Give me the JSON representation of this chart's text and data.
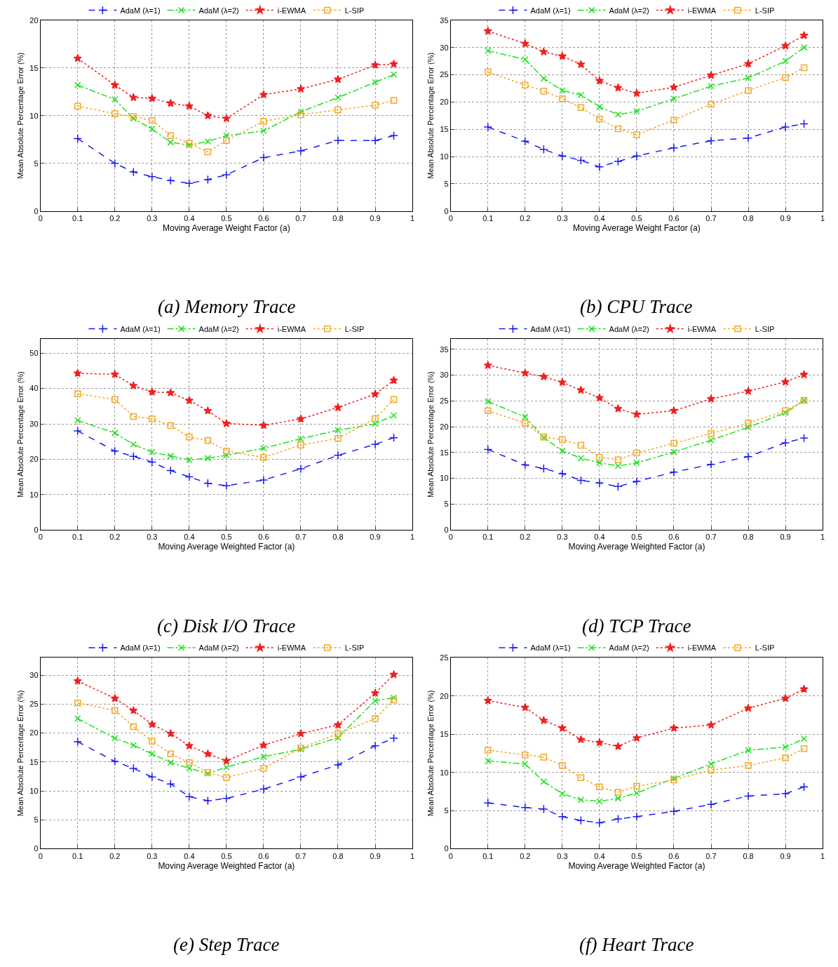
{
  "chart_data": [
    {
      "type": "line",
      "title": "(a) Memory Trace",
      "xlabel": "Moving Average Weight Factor (a)",
      "ylabel": "Mean Absolute Percentage Error (%)",
      "x": [
        0.1,
        0.2,
        0.25,
        0.3,
        0.35,
        0.4,
        0.45,
        0.5,
        0.6,
        0.7,
        0.8,
        0.9,
        0.95
      ],
      "xlim": [
        0,
        1
      ],
      "xticks": [
        0,
        0.1,
        0.2,
        0.3,
        0.4,
        0.5,
        0.6,
        0.7,
        0.8,
        0.9,
        1
      ],
      "ylim": [
        0,
        20
      ],
      "yticks": [
        0,
        5,
        10,
        15,
        20
      ],
      "grid": true,
      "legend": "top",
      "series": [
        {
          "name": "AdaM (λ=1)",
          "color": "#1c1cf0",
          "marker": "cross",
          "line_style": "dashed",
          "values": [
            7.6,
            5.0,
            4.1,
            3.6,
            3.2,
            2.9,
            3.3,
            3.8,
            5.6,
            6.3,
            7.4,
            7.4,
            7.9
          ]
        },
        {
          "name": "AdaM (λ=2)",
          "color": "#20e020",
          "marker": "x",
          "line_style": "dashdot",
          "values": [
            13.2,
            11.7,
            9.7,
            8.6,
            7.2,
            6.9,
            7.3,
            7.9,
            8.4,
            10.4,
            11.9,
            13.5,
            14.3
          ]
        },
        {
          "name": "i-EWMA",
          "color": "#f02020",
          "marker": "star",
          "line_style": "dotted",
          "values": [
            16.0,
            13.2,
            11.9,
            11.8,
            11.3,
            11.0,
            10.0,
            9.7,
            12.2,
            12.8,
            13.8,
            15.3,
            15.4
          ]
        },
        {
          "name": "L-SIP",
          "color": "#f5a623",
          "marker": "square",
          "line_style": "dotted",
          "values": [
            11.0,
            10.2,
            9.9,
            9.5,
            7.9,
            7.1,
            6.2,
            7.4,
            9.4,
            10.1,
            10.6,
            11.1,
            11.6
          ]
        }
      ]
    },
    {
      "type": "line",
      "title": "(b) CPU Trace",
      "xlabel": "Moving Average Weight Factor (a)",
      "ylabel": "Mean Absolute Percentage Error (%)",
      "x": [
        0.1,
        0.2,
        0.25,
        0.3,
        0.35,
        0.4,
        0.45,
        0.5,
        0.6,
        0.7,
        0.8,
        0.9,
        0.95
      ],
      "xlim": [
        0,
        1
      ],
      "xticks": [
        0,
        0.1,
        0.2,
        0.3,
        0.4,
        0.5,
        0.6,
        0.7,
        0.8,
        0.9,
        1
      ],
      "ylim": [
        0,
        35
      ],
      "yticks": [
        0,
        5,
        10,
        15,
        20,
        25,
        30,
        35
      ],
      "grid": true,
      "legend": "top",
      "series": [
        {
          "name": "AdaM (λ=1)",
          "color": "#1c1cf0",
          "marker": "cross",
          "line_style": "dashed",
          "values": [
            15.4,
            12.8,
            11.3,
            10.1,
            9.3,
            8.1,
            9.1,
            10.1,
            11.6,
            12.9,
            13.4,
            15.4,
            16.0
          ]
        },
        {
          "name": "AdaM (λ=2)",
          "color": "#20e020",
          "marker": "x",
          "line_style": "dashdot",
          "values": [
            29.4,
            27.8,
            24.3,
            22.1,
            21.3,
            19.1,
            17.7,
            18.3,
            20.6,
            22.9,
            24.4,
            27.5,
            30.0
          ]
        },
        {
          "name": "i-EWMA",
          "color": "#f02020",
          "marker": "star",
          "line_style": "dotted",
          "values": [
            33.0,
            30.7,
            29.2,
            28.4,
            26.9,
            23.9,
            22.6,
            21.6,
            22.7,
            24.9,
            27.0,
            30.3,
            32.2
          ]
        },
        {
          "name": "L-SIP",
          "color": "#f5a623",
          "marker": "square",
          "line_style": "dotted",
          "values": [
            25.5,
            23.1,
            22.0,
            20.6,
            19.0,
            16.9,
            15.1,
            14.0,
            16.7,
            19.6,
            22.1,
            24.5,
            26.3
          ]
        }
      ]
    },
    {
      "type": "line",
      "title": "(c) Disk I/O Trace",
      "xlabel": "Moving Average Weighted Factor (a)",
      "ylabel": "Mean Absolute Percentage Error (%)",
      "x": [
        0.1,
        0.2,
        0.25,
        0.3,
        0.35,
        0.4,
        0.45,
        0.5,
        0.6,
        0.7,
        0.8,
        0.9,
        0.95
      ],
      "xlim": [
        0,
        1
      ],
      "xticks": [
        0,
        0.1,
        0.2,
        0.3,
        0.4,
        0.5,
        0.6,
        0.7,
        0.8,
        0.9,
        1
      ],
      "ylim": [
        0,
        54
      ],
      "yticks": [
        0,
        10,
        20,
        30,
        40,
        50
      ],
      "grid": true,
      "legend": "top",
      "series": [
        {
          "name": "AdaM (λ=1)",
          "color": "#1c1cf0",
          "marker": "cross",
          "line_style": "dashed",
          "values": [
            28.0,
            22.3,
            20.8,
            19.2,
            16.8,
            15.0,
            13.2,
            12.5,
            14.1,
            17.3,
            21.1,
            24.2,
            26.1
          ]
        },
        {
          "name": "AdaM (λ=2)",
          "color": "#20e020",
          "marker": "x",
          "line_style": "dashdot",
          "values": [
            31.0,
            27.4,
            24.2,
            22.0,
            20.9,
            19.8,
            20.3,
            21.1,
            23.1,
            25.8,
            28.2,
            30.0,
            32.4
          ]
        },
        {
          "name": "i-EWMA",
          "color": "#f02020",
          "marker": "star",
          "line_style": "dotted",
          "values": [
            44.3,
            44.0,
            40.8,
            39.0,
            38.8,
            36.6,
            33.7,
            30.1,
            29.6,
            31.4,
            34.6,
            38.4,
            42.3
          ]
        },
        {
          "name": "L-SIP",
          "color": "#f5a623",
          "marker": "square",
          "line_style": "dotted",
          "values": [
            38.5,
            36.9,
            32.1,
            31.4,
            29.5,
            26.3,
            25.3,
            22.3,
            20.5,
            24.0,
            25.9,
            31.5,
            36.9
          ]
        }
      ]
    },
    {
      "type": "line",
      "title": "(d) TCP Trace",
      "xlabel": "Moving Average Weighted Factor (a)",
      "ylabel": "Mean Absolute Percentage Error (%)",
      "x": [
        0.1,
        0.2,
        0.25,
        0.3,
        0.35,
        0.4,
        0.45,
        0.5,
        0.6,
        0.7,
        0.8,
        0.9,
        0.95
      ],
      "xlim": [
        0,
        1
      ],
      "xticks": [
        0,
        0.1,
        0.2,
        0.3,
        0.4,
        0.5,
        0.6,
        0.7,
        0.8,
        0.9,
        1
      ],
      "ylim": [
        0,
        37
      ],
      "yticks": [
        0,
        5,
        10,
        15,
        20,
        25,
        30,
        35
      ],
      "grid": true,
      "legend": "top",
      "series": [
        {
          "name": "AdaM (λ=1)",
          "color": "#1c1cf0",
          "marker": "cross",
          "line_style": "dashed",
          "values": [
            15.6,
            12.6,
            11.9,
            10.9,
            9.6,
            9.1,
            8.4,
            9.4,
            11.2,
            12.7,
            14.2,
            16.9,
            17.8
          ]
        },
        {
          "name": "AdaM (λ=2)",
          "color": "#20e020",
          "marker": "x",
          "line_style": "dashdot",
          "values": [
            24.9,
            21.9,
            17.9,
            15.3,
            13.9,
            13.0,
            12.4,
            13.0,
            15.1,
            17.4,
            19.9,
            22.7,
            25.1
          ]
        },
        {
          "name": "i-EWMA",
          "color": "#f02020",
          "marker": "star",
          "line_style": "dotted",
          "values": [
            31.9,
            30.4,
            29.7,
            28.6,
            27.1,
            25.6,
            23.5,
            22.4,
            23.1,
            25.4,
            26.9,
            28.7,
            30.1
          ]
        },
        {
          "name": "L-SIP",
          "color": "#f5a623",
          "marker": "square",
          "line_style": "dotted",
          "values": [
            23.1,
            20.7,
            18.0,
            17.5,
            16.4,
            14.1,
            13.6,
            14.9,
            16.8,
            18.7,
            20.7,
            23.1,
            25.1
          ]
        }
      ]
    },
    {
      "type": "line",
      "title": "(e) Step Trace",
      "xlabel": "Moving Average Weighted Factor (a)",
      "ylabel": "Mean Absolute Percentage Error (%)",
      "x": [
        0.1,
        0.2,
        0.25,
        0.3,
        0.35,
        0.4,
        0.45,
        0.5,
        0.6,
        0.7,
        0.8,
        0.9,
        0.95
      ],
      "xlim": [
        0,
        1
      ],
      "xticks": [
        0,
        0.1,
        0.2,
        0.3,
        0.4,
        0.5,
        0.6,
        0.7,
        0.8,
        0.9,
        1
      ],
      "ylim": [
        0,
        33
      ],
      "yticks": [
        0,
        5,
        10,
        15,
        20,
        25,
        30
      ],
      "grid": true,
      "legend": "top",
      "series": [
        {
          "name": "AdaM (λ=1)",
          "color": "#1c1cf0",
          "marker": "cross",
          "line_style": "dashed",
          "values": [
            18.5,
            15.1,
            13.9,
            12.4,
            11.2,
            9.0,
            8.3,
            8.7,
            10.3,
            12.4,
            14.5,
            17.8,
            19.1
          ]
        },
        {
          "name": "AdaM (λ=2)",
          "color": "#20e020",
          "marker": "x",
          "line_style": "dashdot",
          "values": [
            22.5,
            19.1,
            17.9,
            16.4,
            14.9,
            13.9,
            13.0,
            14.1,
            15.9,
            17.2,
            19.2,
            25.6,
            26.1
          ]
        },
        {
          "name": "i-EWMA",
          "color": "#f02020",
          "marker": "star",
          "line_style": "dotted",
          "values": [
            29.0,
            26.0,
            23.9,
            21.5,
            19.9,
            17.8,
            16.4,
            15.2,
            17.9,
            19.9,
            21.4,
            26.9,
            30.1
          ]
        },
        {
          "name": "L-SIP",
          "color": "#f5a623",
          "marker": "square",
          "line_style": "dotted",
          "values": [
            25.2,
            23.9,
            21.1,
            18.6,
            16.4,
            14.9,
            13.2,
            12.3,
            13.9,
            17.4,
            19.9,
            22.5,
            25.7
          ]
        }
      ]
    },
    {
      "type": "line",
      "title": "(f) Heart Trace",
      "xlabel": "Moving Average Weighted Factor (a)",
      "ylabel": "Mean Absolute Percentage Error (%)",
      "x": [
        0.1,
        0.2,
        0.25,
        0.3,
        0.35,
        0.4,
        0.45,
        0.5,
        0.6,
        0.7,
        0.8,
        0.9,
        0.95
      ],
      "xlim": [
        0,
        1
      ],
      "xticks": [
        0,
        0.1,
        0.2,
        0.3,
        0.4,
        0.5,
        0.6,
        0.7,
        0.8,
        0.9,
        1
      ],
      "ylim": [
        0,
        25
      ],
      "yticks": [
        0,
        5,
        10,
        15,
        20,
        25
      ],
      "grid": true,
      "legend": "top",
      "series": [
        {
          "name": "AdaM (λ=1)",
          "color": "#1c1cf0",
          "marker": "cross",
          "line_style": "dashed",
          "values": [
            6.0,
            5.4,
            5.2,
            4.2,
            3.7,
            3.4,
            3.9,
            4.2,
            4.9,
            5.8,
            6.9,
            7.2,
            8.1
          ]
        },
        {
          "name": "AdaM (λ=2)",
          "color": "#20e020",
          "marker": "x",
          "line_style": "dashdot",
          "values": [
            11.5,
            11.1,
            8.8,
            7.2,
            6.4,
            6.2,
            6.6,
            7.3,
            9.2,
            11.1,
            12.9,
            13.3,
            14.4
          ]
        },
        {
          "name": "i-EWMA",
          "color": "#f02020",
          "marker": "star",
          "line_style": "dotted",
          "values": [
            19.4,
            18.5,
            16.8,
            15.8,
            14.3,
            13.9,
            13.4,
            14.5,
            15.8,
            16.2,
            18.4,
            19.7,
            20.9
          ]
        },
        {
          "name": "L-SIP",
          "color": "#f5a623",
          "marker": "square",
          "line_style": "dotted",
          "values": [
            12.9,
            12.3,
            12.0,
            10.9,
            9.3,
            8.1,
            7.4,
            8.2,
            9.0,
            10.3,
            10.9,
            11.9,
            13.1
          ]
        }
      ]
    }
  ]
}
